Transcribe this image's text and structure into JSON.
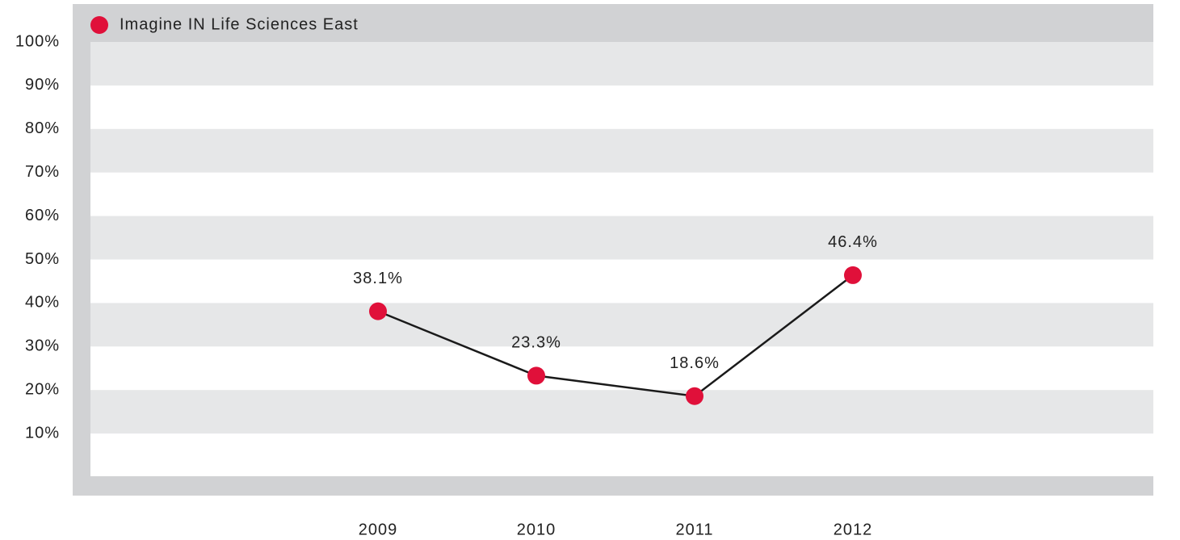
{
  "chart_data": {
    "type": "line",
    "categories": [
      "2009",
      "2010",
      "2011",
      "2012"
    ],
    "series": [
      {
        "name": "Imagine IN Life Sciences East",
        "color": "#e0103a",
        "line_color": "#1a1a1a",
        "values": [
          38.1,
          23.3,
          18.6,
          46.4
        ],
        "value_labels": [
          "38.1%",
          "23.3%",
          "18.6%",
          "46.4%"
        ]
      }
    ],
    "ylim": [
      0,
      100
    ],
    "yticks": [
      {
        "value": 10,
        "label": "10%"
      },
      {
        "value": 20,
        "label": "20%"
      },
      {
        "value": 30,
        "label": "30%"
      },
      {
        "value": 40,
        "label": "40%"
      },
      {
        "value": 50,
        "label": "50%"
      },
      {
        "value": 60,
        "label": "60%"
      },
      {
        "value": 70,
        "label": "70%"
      },
      {
        "value": 80,
        "label": "80%"
      },
      {
        "value": 90,
        "label": "90%"
      },
      {
        "value": 100,
        "label": "100%"
      }
    ],
    "grid": true,
    "legend": "top-left"
  }
}
